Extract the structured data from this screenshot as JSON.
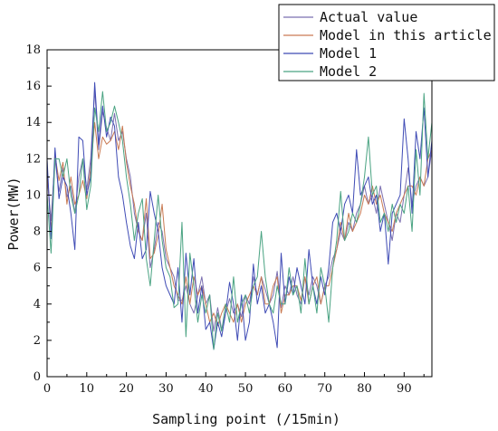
{
  "chart_data": {
    "type": "line",
    "title": "",
    "xlabel": "Sampling point (/15min)",
    "ylabel": "Power(MW)",
    "xlim": [
      0,
      97
    ],
    "ylim": [
      0,
      18
    ],
    "x_ticks": [
      0,
      10,
      20,
      30,
      40,
      50,
      60,
      70,
      80,
      90
    ],
    "y_ticks": [
      0,
      2,
      4,
      6,
      8,
      10,
      12,
      14,
      16,
      18
    ],
    "grid": false,
    "legend_position": "top-right",
    "series": [
      {
        "name": "Actual value",
        "color": "#7b6fb0",
        "values": [
          11.0,
          8.6,
          12.0,
          10.2,
          11.5,
          9.9,
          10.5,
          9.0,
          11.0,
          12.0,
          10.3,
          12.0,
          15.8,
          12.5,
          14.6,
          13.7,
          13.0,
          14.5,
          13.0,
          13.5,
          12.0,
          11.0,
          9.0,
          8.0,
          7.5,
          9.0,
          6.0,
          7.0,
          8.5,
          8.0,
          6.5,
          6.0,
          5.5,
          4.2,
          4.2,
          5.0,
          4.0,
          3.5,
          4.5,
          5.5,
          4.0,
          4.5,
          2.5,
          3.8,
          2.6,
          3.5,
          4.3,
          3.5,
          4.0,
          3.3,
          4.5,
          4.0,
          5.5,
          4.5,
          5.5,
          4.8,
          4.0,
          4.5,
          5.8,
          3.8,
          5.0,
          4.5,
          5.5,
          4.5,
          4.0,
          5.5,
          4.5,
          5.5,
          5.0,
          4.0,
          5.0,
          5.5,
          6.5,
          7.0,
          8.0,
          7.5,
          8.5,
          8.0,
          9.0,
          9.5,
          10.5,
          9.5,
          10.0,
          9.0,
          10.5,
          9.5,
          8.5,
          7.5,
          9.0,
          8.5,
          10.0,
          11.5,
          9.5,
          10.5,
          11.0,
          10.5,
          11.0,
          12.5
        ]
      },
      {
        "name": "Model in this article",
        "color": "#c97b54",
        "values": [
          11.5,
          8.0,
          12.2,
          10.8,
          11.8,
          9.5,
          11.0,
          9.5,
          10.0,
          10.8,
          9.8,
          11.5,
          14.0,
          12.0,
          13.2,
          12.8,
          13.0,
          13.5,
          12.5,
          13.8,
          11.8,
          10.5,
          9.5,
          8.0,
          7.5,
          9.8,
          6.5,
          6.8,
          7.8,
          9.5,
          7.0,
          6.0,
          5.0,
          4.5,
          4.0,
          5.5,
          4.0,
          5.5,
          4.5,
          5.0,
          4.0,
          3.0,
          3.5,
          2.8,
          3.5,
          4.0,
          3.5,
          3.0,
          4.0,
          3.0,
          4.0,
          4.5,
          5.0,
          4.5,
          5.5,
          4.0,
          4.0,
          5.0,
          5.5,
          3.5,
          4.5,
          4.5,
          5.0,
          5.0,
          4.2,
          5.5,
          4.0,
          5.0,
          5.5,
          4.0,
          5.0,
          5.0,
          6.0,
          7.0,
          8.5,
          7.5,
          9.0,
          8.0,
          8.5,
          9.0,
          10.0,
          9.5,
          10.5,
          9.5,
          10.0,
          9.0,
          8.5,
          8.0,
          9.0,
          9.5,
          10.0,
          10.5,
          10.5,
          10.0,
          11.0,
          10.5,
          12.0,
          12.5
        ]
      },
      {
        "name": "Model 1",
        "color": "#3f4bb5",
        "values": [
          12.0,
          7.6,
          12.6,
          9.8,
          11.0,
          10.5,
          9.0,
          7.0,
          13.2,
          13.0,
          10.0,
          11.0,
          16.2,
          12.8,
          14.9,
          13.2,
          14.3,
          13.8,
          11.0,
          10.0,
          8.5,
          7.2,
          6.5,
          8.5,
          6.5,
          7.0,
          10.2,
          9.0,
          8.0,
          6.0,
          5.0,
          4.5,
          4.0,
          6.0,
          3.0,
          6.8,
          4.5,
          6.5,
          3.5,
          5.0,
          2.6,
          3.0,
          1.5,
          3.0,
          2.2,
          3.5,
          5.2,
          4.0,
          2.0,
          4.5,
          2.0,
          3.0,
          6.2,
          4.0,
          5.0,
          3.5,
          4.0,
          3.0,
          1.6,
          6.8,
          4.0,
          5.5,
          4.5,
          6.0,
          5.0,
          4.0,
          7.0,
          5.0,
          4.0,
          5.5,
          4.5,
          6.0,
          8.5,
          9.0,
          8.0,
          9.5,
          10.0,
          9.0,
          12.5,
          10.0,
          10.5,
          11.0,
          9.5,
          10.0,
          8.0,
          9.0,
          6.2,
          9.0,
          9.5,
          10.0,
          14.2,
          12.0,
          9.0,
          13.5,
          12.0,
          14.8,
          11.0,
          13.0
        ]
      },
      {
        "name": "Model 2",
        "color": "#4aa382",
        "values": [
          10.0,
          6.8,
          12.0,
          12.0,
          11.0,
          12.0,
          10.0,
          9.0,
          10.0,
          12.0,
          9.2,
          10.5,
          14.8,
          13.5,
          15.7,
          13.5,
          14.0,
          14.9,
          14.0,
          13.0,
          11.0,
          9.5,
          7.5,
          9.0,
          9.8,
          6.5,
          5.0,
          7.5,
          10.0,
          7.5,
          6.0,
          5.5,
          3.8,
          4.0,
          8.5,
          2.2,
          6.8,
          5.0,
          3.0,
          4.5,
          3.5,
          4.5,
          1.5,
          3.5,
          2.5,
          4.0,
          3.0,
          5.5,
          3.0,
          4.0,
          4.5,
          3.5,
          5.0,
          5.5,
          8.0,
          5.5,
          4.0,
          3.5,
          5.0,
          4.0,
          4.0,
          6.0,
          4.5,
          5.0,
          3.5,
          6.5,
          4.0,
          5.0,
          3.5,
          6.0,
          5.0,
          3.0,
          6.0,
          7.5,
          10.2,
          7.5,
          8.0,
          9.0,
          8.5,
          9.5,
          11.0,
          13.2,
          10.0,
          10.5,
          8.5,
          9.0,
          8.0,
          9.5,
          8.5,
          9.5,
          9.0,
          10.5,
          8.0,
          12.5,
          10.0,
          15.6,
          12.0,
          14.0
        ]
      }
    ]
  }
}
